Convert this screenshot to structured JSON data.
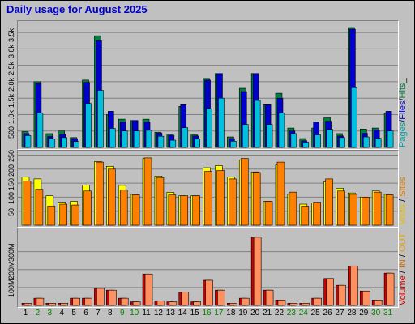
{
  "title": "Daily usage for August 2025",
  "legends": {
    "panel1": [
      {
        "text": "Pages",
        "color": "#00a0a0"
      },
      {
        "text": "/",
        "color": "#000000"
      },
      {
        "text": "Files",
        "color": "#0000cc"
      },
      {
        "text": "/",
        "color": "#000000"
      },
      {
        "text": "Hits",
        "color": "#008040"
      },
      {
        "text": "_",
        "color": "#000000"
      }
    ],
    "panel2": [
      {
        "text": "Visits",
        "color": "#e0c000"
      },
      {
        "text": " / ",
        "color": "#000000"
      },
      {
        "text": "Sites",
        "color": "#e08000"
      }
    ],
    "panel3": [
      {
        "text": "Volume",
        "color": "#cc0000"
      },
      {
        "text": " / ",
        "color": "#000000"
      },
      {
        "text": "IN",
        "color": "#cc6600"
      },
      {
        "text": " / ",
        "color": "#000000"
      },
      {
        "text": "OUT",
        "color": "#e0a000"
      }
    ]
  },
  "colors": {
    "hits": "#008040",
    "files": "#0000cc",
    "pages": "#00c0e0",
    "visits": "#ffff00",
    "sites": "#ff8000",
    "volume": "#cc0000",
    "in": "#e07000",
    "out": "#ff9060",
    "weekend": "#008000",
    "weekday": "#000000"
  },
  "chart_data": [
    {
      "type": "bar",
      "title": "Daily usage for August 2025",
      "ytick_labels": [
        "500",
        "1.0k",
        "1.5k",
        "2.0k",
        "2.5k",
        "3.0k",
        "3.5k"
      ],
      "yticks": [
        500,
        1000,
        1500,
        2000,
        2500,
        3000,
        3500
      ],
      "ylim": [
        0,
        3700
      ],
      "categories": [
        "1",
        "2",
        "3",
        "4",
        "5",
        "6",
        "7",
        "8",
        "9",
        "10",
        "11",
        "12",
        "13",
        "14",
        "15",
        "16",
        "17",
        "18",
        "19",
        "20",
        "21",
        "22",
        "23",
        "24",
        "25",
        "26",
        "27",
        "28",
        "29",
        "30",
        "31"
      ],
      "series": [
        {
          "name": "Hits",
          "values": [
            480,
            2000,
            420,
            500,
            300,
            2050,
            3400,
            1000,
            860,
            820,
            860,
            460,
            380,
            1250,
            380,
            2100,
            2250,
            320,
            1800,
            2250,
            1300,
            1650,
            590,
            270,
            590,
            900,
            420,
            3650,
            560,
            590,
            1050
          ]
        },
        {
          "name": "Files",
          "values": [
            420,
            1950,
            330,
            400,
            270,
            1980,
            3250,
            1100,
            780,
            820,
            780,
            430,
            370,
            1300,
            350,
            2050,
            2250,
            270,
            1700,
            2250,
            1300,
            1500,
            500,
            200,
            780,
            800,
            350,
            3600,
            430,
            530,
            1100
          ]
        },
        {
          "name": "Pages",
          "values": [
            360,
            1050,
            260,
            300,
            180,
            1340,
            1740,
            580,
            500,
            500,
            520,
            340,
            220,
            600,
            260,
            1180,
            1500,
            190,
            700,
            1430,
            700,
            1050,
            420,
            160,
            380,
            550,
            300,
            1820,
            320,
            280,
            500
          ]
        }
      ],
      "day_labels_weekend": [
        2,
        3,
        9,
        10,
        16,
        17,
        23,
        24,
        30,
        31
      ]
    },
    {
      "type": "bar",
      "ytick_labels": [
        "50",
        "100",
        "150",
        "200",
        "250"
      ],
      "yticks": [
        50,
        100,
        150,
        200,
        250
      ],
      "ylim": [
        0,
        260
      ],
      "categories": [
        "1",
        "2",
        "3",
        "4",
        "5",
        "6",
        "7",
        "8",
        "9",
        "10",
        "11",
        "12",
        "13",
        "14",
        "15",
        "16",
        "17",
        "18",
        "19",
        "20",
        "21",
        "22",
        "23",
        "24",
        "25",
        "26",
        "27",
        "28",
        "29",
        "30",
        "31"
      ],
      "series": [
        {
          "name": "Visits",
          "values": [
            172,
            165,
            105,
            82,
            85,
            143,
            227,
            210,
            142,
            110,
            238,
            175,
            117,
            105,
            105,
            205,
            212,
            172,
            232,
            190,
            85,
            215,
            110,
            75,
            80,
            155,
            132,
            115,
            100,
            122,
            110
          ]
        },
        {
          "name": "Sites",
          "values": [
            158,
            128,
            68,
            75,
            72,
            122,
            225,
            200,
            125,
            108,
            240,
            170,
            108,
            105,
            105,
            192,
            195,
            165,
            238,
            188,
            85,
            225,
            118,
            68,
            82,
            165,
            122,
            110,
            100,
            118,
            108
          ]
        }
      ]
    },
    {
      "type": "bar",
      "ytick_labels": [
        "100M",
        "200M",
        "300M"
      ],
      "yticks": [
        100,
        200,
        300
      ],
      "ylim": [
        0,
        420
      ],
      "categories": [
        "1",
        "2",
        "3",
        "4",
        "5",
        "6",
        "7",
        "8",
        "9",
        "10",
        "11",
        "12",
        "13",
        "14",
        "15",
        "16",
        "17",
        "18",
        "19",
        "20",
        "21",
        "22",
        "23",
        "24",
        "25",
        "26",
        "27",
        "28",
        "29",
        "30",
        "31"
      ],
      "series": [
        {
          "name": "Volume",
          "values": [
            12,
            40,
            12,
            12,
            40,
            40,
            95,
            85,
            40,
            20,
            175,
            25,
            20,
            75,
            20,
            140,
            85,
            12,
            40,
            380,
            85,
            30,
            12,
            12,
            40,
            150,
            112,
            220,
            80,
            30,
            180
          ]
        },
        {
          "name": "IN",
          "values": [
            8,
            30,
            8,
            8,
            30,
            30,
            85,
            75,
            30,
            14,
            170,
            18,
            14,
            65,
            14,
            130,
            75,
            8,
            30,
            375,
            75,
            22,
            8,
            8,
            30,
            140,
            105,
            210,
            70,
            22,
            170
          ]
        },
        {
          "name": "OUT",
          "values": [
            12,
            40,
            12,
            12,
            40,
            40,
            95,
            85,
            40,
            20,
            175,
            25,
            20,
            75,
            20,
            140,
            85,
            12,
            40,
            380,
            85,
            30,
            12,
            12,
            40,
            150,
            112,
            220,
            80,
            30,
            180
          ]
        }
      ]
    }
  ]
}
